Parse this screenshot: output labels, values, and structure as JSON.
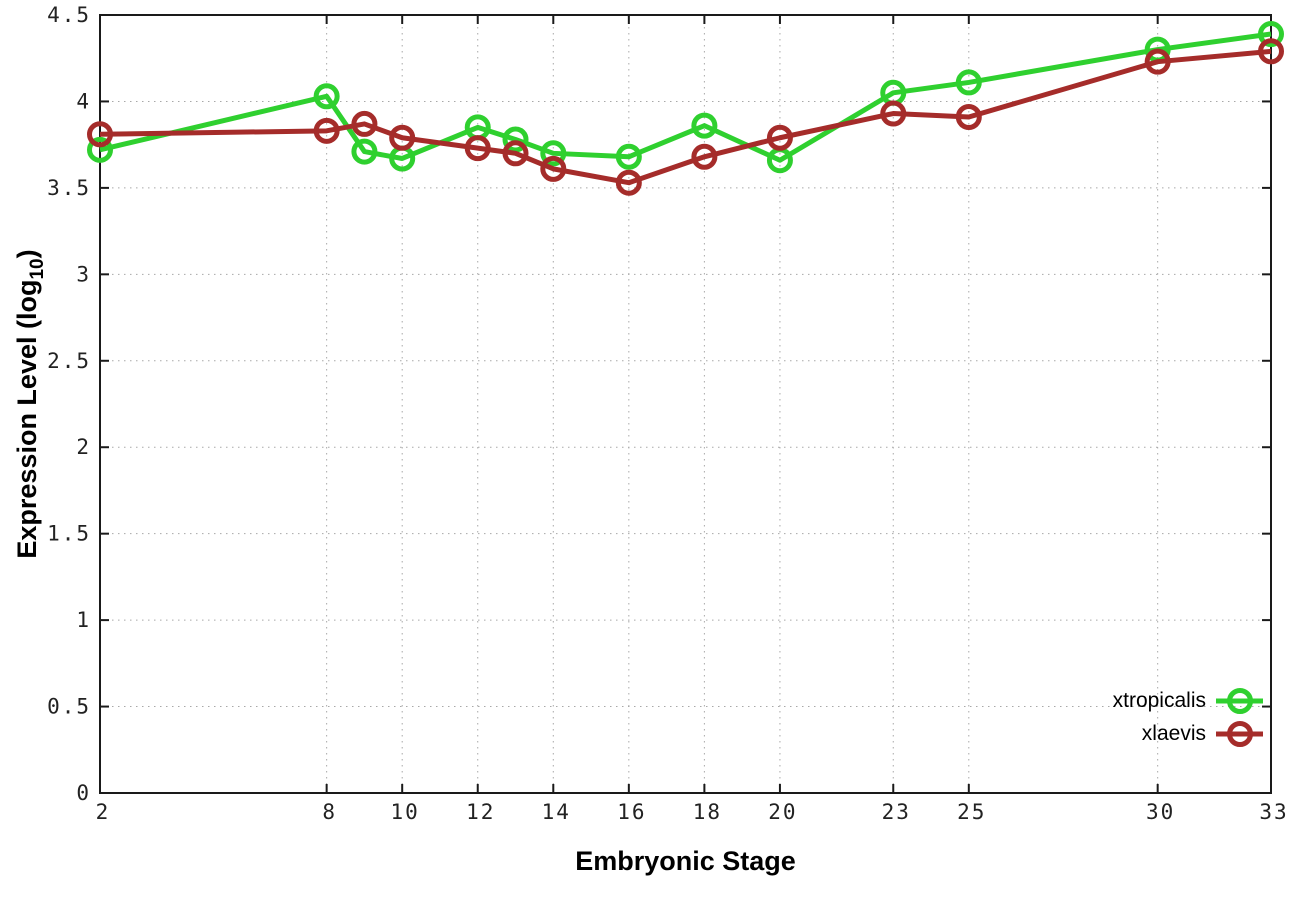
{
  "chart_data": {
    "type": "line",
    "title": "",
    "xlabel": "Embryonic Stage",
    "ylabel": "Expression Level (log10)",
    "ylabel_parts": {
      "prefix": "Expression Level (log",
      "sub": "10",
      "suffix": ")"
    },
    "x": [
      2,
      8,
      9,
      10,
      12,
      13,
      14,
      16,
      18,
      20,
      23,
      25,
      30,
      33
    ],
    "x_tick_labels": [
      "2",
      "8",
      "10",
      "12",
      "14",
      "16",
      "18",
      "20",
      "23",
      "25",
      "30",
      "33"
    ],
    "x_ticks": [
      2,
      8,
      10,
      12,
      14,
      16,
      18,
      20,
      23,
      25,
      30,
      33
    ],
    "y_ticks": [
      0,
      0.5,
      1,
      1.5,
      2,
      2.5,
      3,
      3.5,
      4,
      4.5
    ],
    "y_tick_labels": [
      "0",
      "0.5",
      "1",
      "1.5",
      "2",
      "2.5",
      "3",
      "3.5",
      "4",
      "4.5"
    ],
    "xlim": [
      2,
      33
    ],
    "ylim": [
      0,
      4.5
    ],
    "grid": true,
    "legend": {
      "position": "bottom-right"
    },
    "series": [
      {
        "name": "xtropicalis",
        "color": "#2fd02f",
        "marker": "open-circle",
        "values": [
          3.72,
          4.03,
          3.71,
          3.67,
          3.85,
          3.78,
          3.7,
          3.68,
          3.86,
          3.66,
          4.05,
          4.11,
          4.3,
          4.39
        ]
      },
      {
        "name": "xlaevis",
        "color": "#a52c2a",
        "marker": "open-circle",
        "values": [
          3.81,
          3.83,
          3.87,
          3.79,
          3.73,
          3.7,
          3.61,
          3.53,
          3.68,
          3.79,
          3.93,
          3.91,
          4.23,
          4.29
        ]
      }
    ],
    "style": {
      "background": "#ffffff",
      "axis_color": "#1a1a1a",
      "grid_color": "#a8a8a8",
      "tick_label_color": "#222222",
      "legend_text_color": "#000000"
    }
  }
}
